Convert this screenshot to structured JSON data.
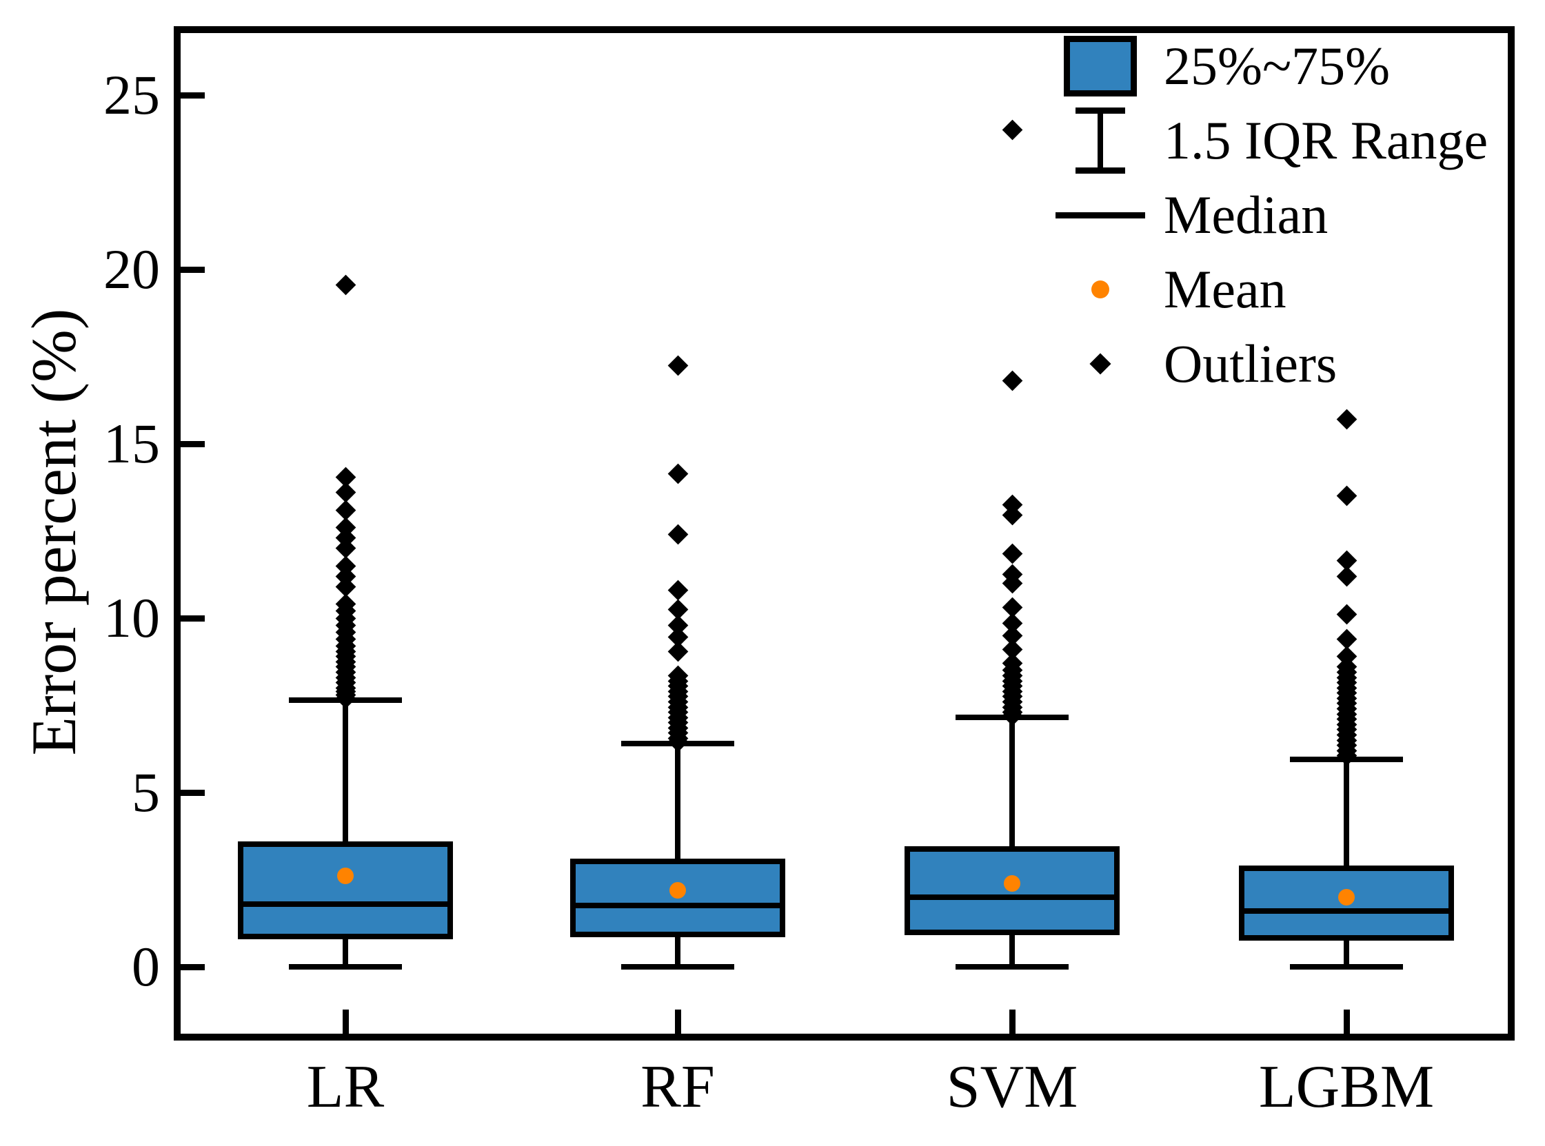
{
  "chart_data": {
    "type": "boxplot",
    "title": "",
    "xlabel": "",
    "ylabel": "Error percent (%)",
    "categories": [
      "LR",
      "RF",
      "SVM",
      "LGBM"
    ],
    "yticks": [
      0,
      5,
      10,
      15,
      20,
      25
    ],
    "ylim": [
      -2.0,
      26.9
    ],
    "grid": false,
    "legend_position": "upper right",
    "legend": [
      {
        "symbol": "box",
        "label": "25%~75%"
      },
      {
        "symbol": "whisker",
        "label": "1.5 IQR Range"
      },
      {
        "symbol": "line",
        "label": "Median"
      },
      {
        "symbol": "dot",
        "label": "Mean"
      },
      {
        "symbol": "diamond",
        "label": "Outliers"
      }
    ],
    "colors": {
      "box_fill": "#3182bd",
      "box_edge": "#000000",
      "median": "#000000",
      "mean": "#ff8300",
      "outlier": "#000000"
    },
    "series": [
      {
        "name": "LR",
        "q1": 0.8,
        "median": 1.8,
        "q3": 3.6,
        "whisker_low": 0.0,
        "whisker_high": 7.65,
        "mean": 2.6,
        "outliers": [
          19.55,
          14.05,
          13.6,
          13.1,
          12.6,
          12.3,
          12.0,
          11.5,
          11.2,
          10.9,
          10.4,
          10.2,
          10.0,
          9.8,
          9.6,
          9.4,
          9.2,
          9.05,
          8.9,
          8.75,
          8.6,
          8.45,
          8.3,
          8.15,
          8.0,
          7.9,
          7.8,
          7.7
        ]
      },
      {
        "name": "RF",
        "q1": 0.85,
        "median": 1.75,
        "q3": 3.1,
        "whisker_low": 0.0,
        "whisker_high": 6.4,
        "mean": 2.2,
        "outliers": [
          17.25,
          14.15,
          12.4,
          10.8,
          10.25,
          9.8,
          9.45,
          9.05,
          8.35,
          8.2,
          8.05,
          7.9,
          7.75,
          7.6,
          7.45,
          7.3,
          7.15,
          7.0,
          6.85,
          6.7,
          6.55,
          6.45
        ]
      },
      {
        "name": "SVM",
        "q1": 0.9,
        "median": 2.0,
        "q3": 3.45,
        "whisker_low": 0.0,
        "whisker_high": 7.15,
        "mean": 2.4,
        "outliers": [
          24.0,
          16.8,
          13.25,
          12.95,
          11.85,
          11.25,
          11.0,
          10.3,
          9.85,
          9.5,
          9.1,
          8.7,
          8.5,
          8.35,
          8.2,
          8.05,
          7.9,
          7.75,
          7.6,
          7.45,
          7.3,
          7.2
        ]
      },
      {
        "name": "LGBM",
        "q1": 0.75,
        "median": 1.6,
        "q3": 2.9,
        "whisker_low": 0.0,
        "whisker_high": 5.95,
        "mean": 2.0,
        "outliers": [
          15.7,
          13.5,
          11.65,
          11.2,
          10.1,
          9.4,
          8.9,
          8.6,
          8.45,
          8.3,
          8.15,
          8.0,
          7.85,
          7.7,
          7.55,
          7.4,
          7.25,
          7.1,
          6.95,
          6.8,
          6.65,
          6.5,
          6.35,
          6.2,
          6.05
        ]
      }
    ]
  }
}
